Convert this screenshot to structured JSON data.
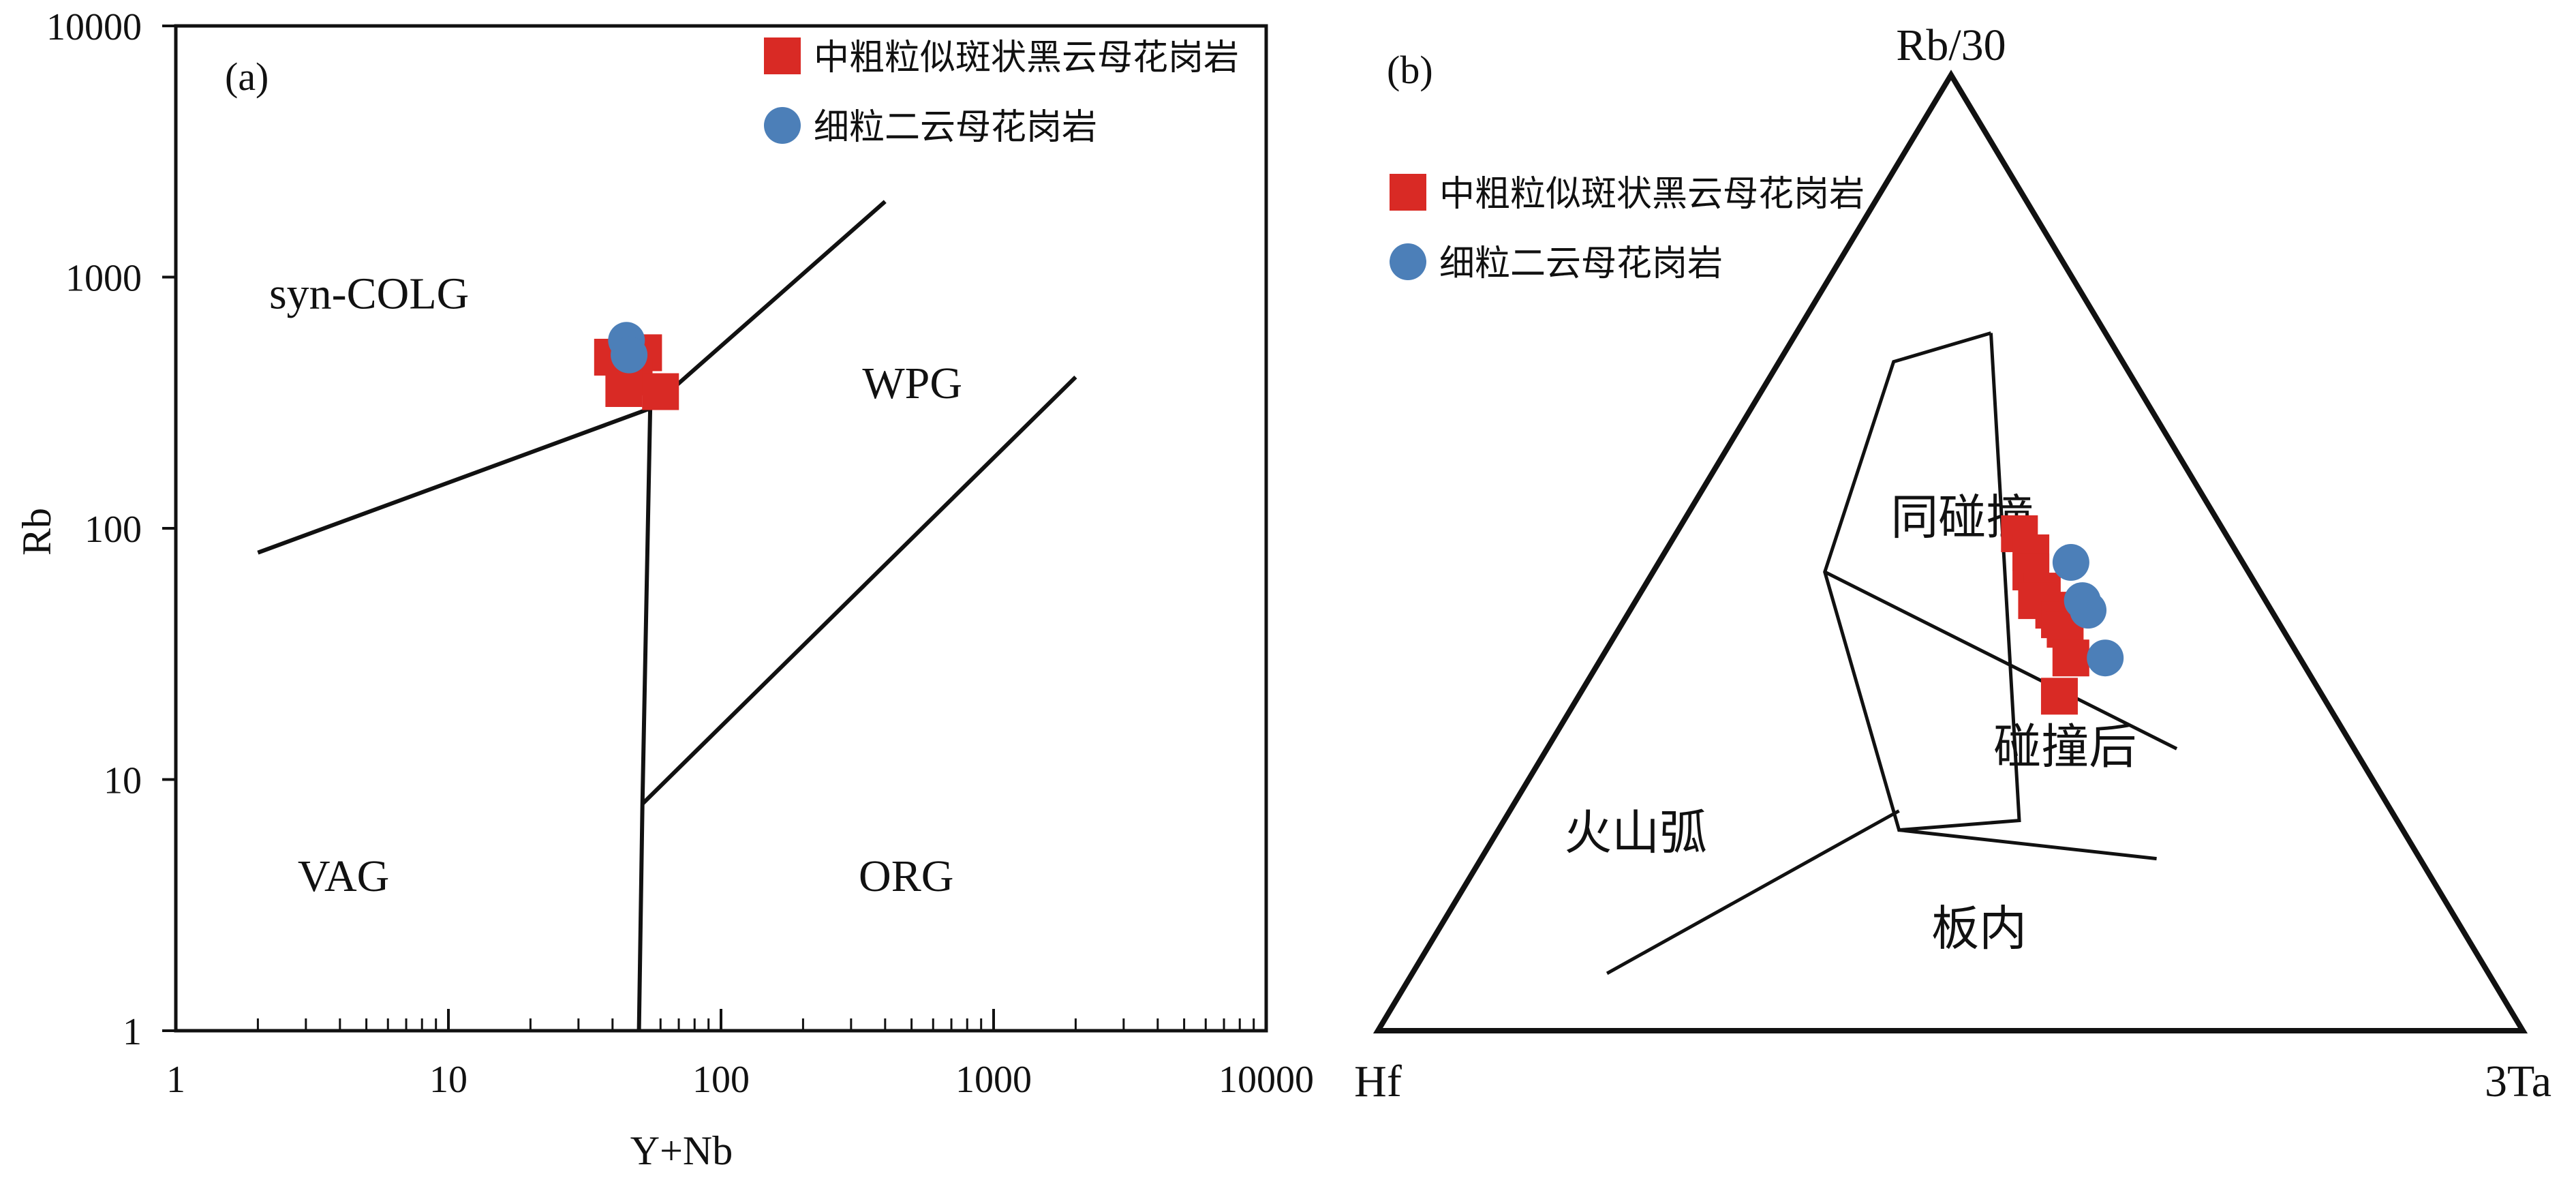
{
  "chart_data": [
    {
      "type": "scatter",
      "panel_label": "(a)",
      "xlabel": "Y+Nb",
      "ylabel": "Rb",
      "x_scale": "log",
      "y_scale": "log",
      "xlim": [
        1,
        10000
      ],
      "ylim": [
        1,
        10000
      ],
      "x_ticks": [
        1,
        10,
        100,
        1000,
        10000
      ],
      "x_tick_labels": [
        "1",
        "10",
        "100",
        "1000",
        "10000"
      ],
      "y_ticks": [
        1,
        10,
        100,
        1000,
        10000
      ],
      "y_tick_labels": [
        "1",
        "10",
        "100",
        "1000",
        "10000"
      ],
      "grid": false,
      "legend_position": "top-right",
      "field_labels": [
        {
          "text": "syn-COLG",
          "x": 2.2,
          "y": 750
        },
        {
          "text": "WPG",
          "x": 330,
          "y": 330
        },
        {
          "text": "VAG",
          "x": 2.8,
          "y": 3.6
        },
        {
          "text": "ORG",
          "x": 320,
          "y": 3.6
        }
      ],
      "boundaries": [
        {
          "name": "syn-COLG / VAG",
          "points": [
            [
              2,
              80
            ],
            [
              55,
              300
            ]
          ]
        },
        {
          "name": "syn-COLG / WPG",
          "points": [
            [
              55,
              300
            ],
            [
              400,
              2000
            ]
          ]
        },
        {
          "name": "VAG / ORG-WPG",
          "points": [
            [
              55,
              300
            ],
            [
              51.5,
              8
            ],
            [
              50,
              1
            ]
          ]
        },
        {
          "name": "WPG / ORG",
          "points": [
            [
              51.5,
              8
            ],
            [
              2000,
              400
            ]
          ]
        }
      ],
      "series": [
        {
          "name": "中粗粒似斑状黑云母花岗岩",
          "marker": "square",
          "color": "#d92a25",
          "points": [
            [
              40,
              480
            ],
            [
              52,
              500
            ],
            [
              48,
              400
            ],
            [
              44,
              360
            ],
            [
              60,
              350
            ]
          ]
        },
        {
          "name": "细粒二云母花岗岩",
          "marker": "circle",
          "color": "#4c7fb8",
          "points": [
            [
              45,
              560
            ],
            [
              46,
              490
            ]
          ]
        }
      ]
    },
    {
      "type": "ternary",
      "panel_label": "(b)",
      "apex_labels": {
        "top": "Rb/30",
        "left": "Hf",
        "right": "3Ta"
      },
      "grid": false,
      "legend_position": "top-left",
      "field_labels": [
        {
          "text": "同碰撞",
          "Rb30": 0.52,
          "Hf": 0.23,
          "Ta3": 0.25
        },
        {
          "text": "碰撞后",
          "Rb30": 0.28,
          "Hf": 0.26,
          "Ta3": 0.46
        },
        {
          "text": "火山弧",
          "Rb30": 0.19,
          "Hf": 0.68,
          "Ta3": 0.13
        },
        {
          "text": "板内",
          "Rb30": 0.09,
          "Hf": 0.43,
          "Ta3": 0.48
        }
      ],
      "boundaries": [
        {
          "name": "syn-collision field",
          "points": [
            [
              0.73,
              0.1,
              0.17
            ],
            [
              0.7,
              0.2,
              0.1
            ],
            [
              0.48,
              0.37,
              0.15
            ],
            [
              0.21,
              0.44,
              0.35
            ],
            [
              0.22,
              0.33,
              0.45
            ],
            [
              0.73,
              0.1,
              0.17
            ]
          ]
        },
        {
          "name": "syn-collision / post-collision",
          "points": [
            [
              0.48,
              0.37,
              0.15
            ],
            [
              0.295,
              0.155,
              0.55
            ]
          ]
        },
        {
          "name": "within-plate upper boundary",
          "points": [
            [
              0.21,
              0.44,
              0.35
            ],
            [
              0.18,
              0.23,
              0.59
            ]
          ]
        },
        {
          "name": "volcanic-arc boundary",
          "points": [
            [
              0.06,
              0.77,
              0.17
            ],
            [
              0.23,
              0.43,
              0.34
            ]
          ]
        }
      ],
      "series": [
        {
          "name": "中粗粒似斑状黑云母花岗岩",
          "marker": "square",
          "color": "#d92a25",
          "points": [
            [
              0.52,
              0.18,
              0.3
            ],
            [
              0.5,
              0.18,
              0.32
            ],
            [
              0.48,
              0.19,
              0.33
            ],
            [
              0.46,
              0.19,
              0.35
            ],
            [
              0.44,
              0.19,
              0.37
            ],
            [
              0.45,
              0.2,
              0.35
            ],
            [
              0.43,
              0.19,
              0.38
            ],
            [
              0.42,
              0.19,
              0.39
            ],
            [
              0.39,
              0.2,
              0.41
            ],
            [
              0.35,
              0.23,
              0.42
            ]
          ]
        },
        {
          "name": "细粒二云母花岗岩",
          "marker": "circle",
          "color": "#4c7fb8",
          "points": [
            [
              0.49,
              0.15,
              0.36
            ],
            [
              0.45,
              0.16,
              0.39
            ],
            [
              0.44,
              0.16,
              0.4
            ],
            [
              0.39,
              0.17,
              0.44
            ]
          ]
        }
      ]
    }
  ]
}
